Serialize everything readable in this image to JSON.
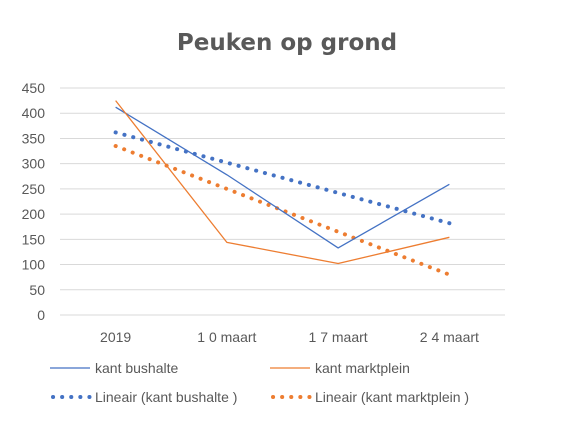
{
  "chart_data": {
    "type": "line",
    "title": "Peuken op grond",
    "categories": [
      "2019",
      "1 0 maart",
      "1 7 maart",
      "2 4 maart"
    ],
    "ylim": [
      0,
      450
    ],
    "yticks": [
      0,
      50,
      100,
      150,
      200,
      250,
      300,
      350,
      400,
      450
    ],
    "grid": true,
    "legend": "bottom",
    "series": [
      {
        "name": "kant bushalte",
        "values": [
          412,
          278,
          133,
          259
        ],
        "color": "#4472C4",
        "style": "solid"
      },
      {
        "name": "kant marktplein",
        "values": [
          425,
          144,
          102,
          154
        ],
        "color": "#ED7D31",
        "style": "solid"
      },
      {
        "name": "Lineair (kant bushalte )",
        "values": [
          362,
          302,
          242,
          182
        ],
        "color": "#4472C4",
        "style": "dotted"
      },
      {
        "name": "Lineair (kant marktplein )",
        "values": [
          335,
          250,
          165,
          80
        ],
        "color": "#ED7D31",
        "style": "dotted"
      }
    ]
  }
}
